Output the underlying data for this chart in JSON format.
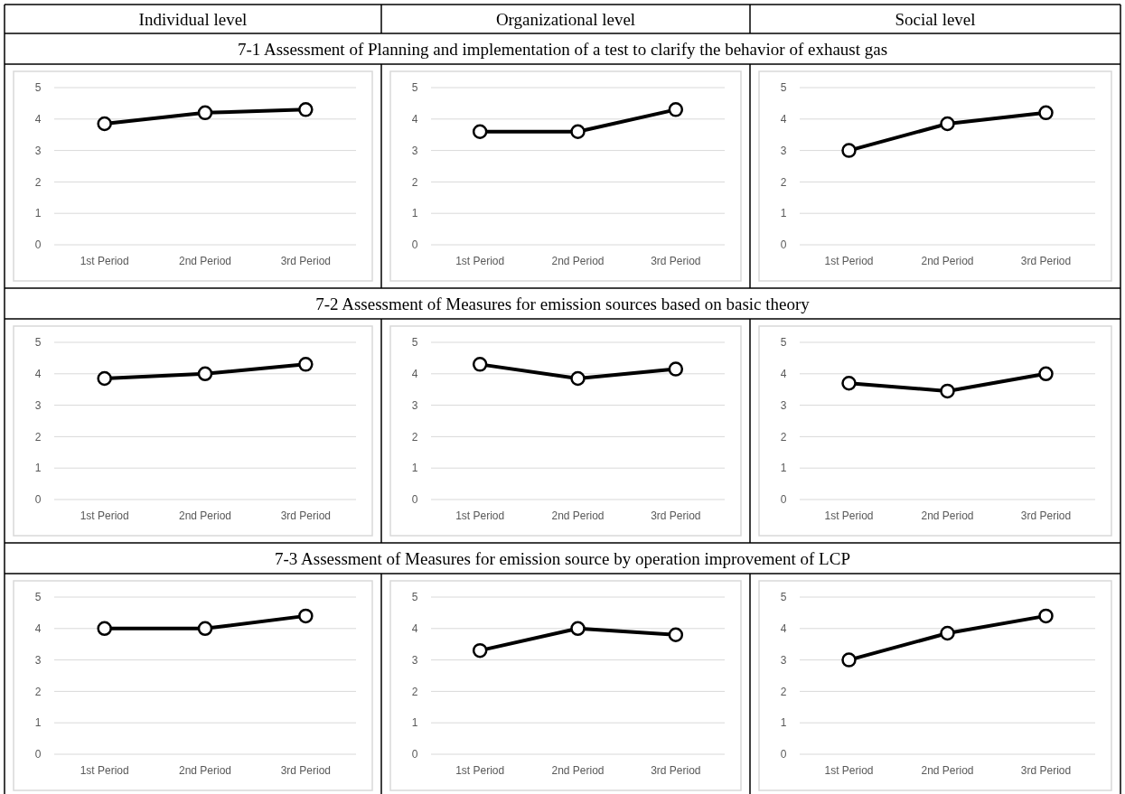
{
  "chart_data": [
    {
      "type": "other",
      "annotations": [
        "Individual level",
        "Organizational level",
        "Social level"
      ]
    },
    {
      "type": "other",
      "title": "7-1 Assessment of Planning and implementation of a test to clarify the behavior of exhaust gas"
    },
    {
      "type": "line",
      "categories": [
        "1st Period",
        "2nd Period",
        "3rd Period"
      ],
      "values": [
        3.85,
        4.2,
        4.3
      ],
      "color": "#000000",
      "ylim": [
        0,
        5
      ],
      "yticks": [
        0,
        1,
        2,
        3,
        4,
        5
      ],
      "grid": "y",
      "marker": "circle"
    },
    {
      "type": "line",
      "categories": [
        "1st Period",
        "2nd Period",
        "3rd Period"
      ],
      "values": [
        3.6,
        3.6,
        4.3
      ],
      "color": "#000000",
      "ylim": [
        0,
        5
      ],
      "yticks": [
        0,
        1,
        2,
        3,
        4,
        5
      ],
      "grid": "y",
      "marker": "circle"
    },
    {
      "type": "line",
      "categories": [
        "1st Period",
        "2nd Period",
        "3rd Period"
      ],
      "values": [
        3.0,
        3.85,
        4.2
      ],
      "color": "#000000",
      "ylim": [
        0,
        5
      ],
      "yticks": [
        0,
        1,
        2,
        3,
        4,
        5
      ],
      "grid": "y",
      "marker": "circle"
    },
    {
      "type": "other",
      "title": "7-2 Assessment of Measures for emission sources based on basic theory"
    },
    {
      "type": "line",
      "categories": [
        "1st Period",
        "2nd Period",
        "3rd Period"
      ],
      "values": [
        3.85,
        4.0,
        4.3
      ],
      "color": "#000000",
      "ylim": [
        0,
        5
      ],
      "yticks": [
        0,
        1,
        2,
        3,
        4,
        5
      ],
      "grid": "y",
      "marker": "circle"
    },
    {
      "type": "line",
      "categories": [
        "1st Period",
        "2nd Period",
        "3rd Period"
      ],
      "values": [
        4.3,
        3.85,
        4.15
      ],
      "color": "#000000",
      "ylim": [
        0,
        5
      ],
      "yticks": [
        0,
        1,
        2,
        3,
        4,
        5
      ],
      "grid": "y",
      "marker": "circle"
    },
    {
      "type": "line",
      "categories": [
        "1st Period",
        "2nd Period",
        "3rd Period"
      ],
      "values": [
        3.7,
        3.45,
        4.0
      ],
      "color": "#000000",
      "ylim": [
        0,
        5
      ],
      "yticks": [
        0,
        1,
        2,
        3,
        4,
        5
      ],
      "grid": "y",
      "marker": "circle"
    },
    {
      "type": "other",
      "title": "7-3 Assessment of Measures for emission source by operation improvement of LCP"
    },
    {
      "type": "line",
      "categories": [
        "1st Period",
        "2nd Period",
        "3rd Period"
      ],
      "values": [
        4.0,
        4.0,
        4.4
      ],
      "color": "#000000",
      "ylim": [
        0,
        5
      ],
      "yticks": [
        0,
        1,
        2,
        3,
        4,
        5
      ],
      "grid": "y",
      "marker": "circle"
    },
    {
      "type": "line",
      "categories": [
        "1st Period",
        "2nd Period",
        "3rd Period"
      ],
      "values": [
        3.3,
        4.0,
        3.8
      ],
      "color": "#000000",
      "ylim": [
        0,
        5
      ],
      "yticks": [
        0,
        1,
        2,
        3,
        4,
        5
      ],
      "grid": "y",
      "marker": "circle"
    },
    {
      "type": "line",
      "categories": [
        "1st Period",
        "2nd Period",
        "3rd Period"
      ],
      "values": [
        3.0,
        3.85,
        4.4
      ],
      "color": "#000000",
      "ylim": [
        0,
        5
      ],
      "yticks": [
        0,
        1,
        2,
        3,
        4,
        5
      ],
      "grid": "y",
      "marker": "circle"
    }
  ]
}
